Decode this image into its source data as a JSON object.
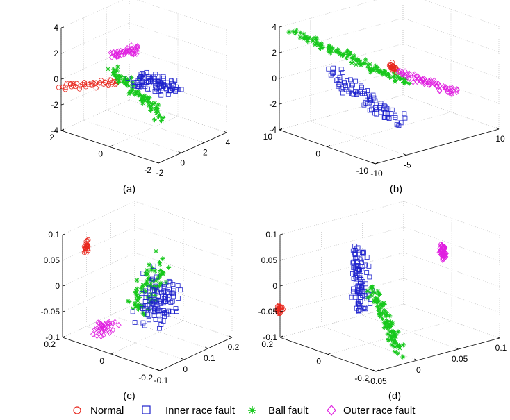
{
  "legend": [
    {
      "label": "Normal",
      "marker": "circle",
      "color": "#e8281e"
    },
    {
      "label": "Inner race fault",
      "marker": "square",
      "color": "#1e22cc"
    },
    {
      "label": "Ball fault",
      "marker": "star",
      "color": "#17c81c"
    },
    {
      "label": "Outer race fault",
      "marker": "diamond",
      "color": "#e020e0"
    }
  ],
  "chart_data": [
    {
      "type": "scatter3d",
      "label": "(a)",
      "xlim": [
        -2,
        4
      ],
      "ylim": [
        -2,
        2
      ],
      "zlim": [
        -4,
        4
      ],
      "x_ticks": [
        {
          "v": -2,
          "t": "-2"
        },
        {
          "v": 0,
          "t": "0"
        },
        {
          "v": 2,
          "t": "2"
        },
        {
          "v": 4,
          "t": "4"
        }
      ],
      "y_ticks": [
        {
          "v": -2,
          "t": "-2"
        },
        {
          "v": 0,
          "t": "0"
        },
        {
          "v": 2,
          "t": "2"
        }
      ],
      "z_ticks": [
        {
          "v": -4,
          "t": "-4"
        },
        {
          "v": -2,
          "t": "-2"
        },
        {
          "v": 0,
          "t": "0"
        },
        {
          "v": 2,
          "t": "2"
        },
        {
          "v": 4,
          "t": "4"
        }
      ],
      "series": [
        {
          "name": "Normal",
          "n": 45,
          "from": [
            -1.9,
            2.0,
            -0.6
          ],
          "to": [
            0.1,
            0.5,
            -0.1
          ],
          "spread": [
            0.1,
            0.08,
            0.12
          ]
        },
        {
          "name": "Outer race fault",
          "n": 50,
          "from": [
            -0.6,
            0.5,
            2.3
          ],
          "to": [
            1.0,
            0.2,
            2.3
          ],
          "spread": [
            0.1,
            0.06,
            0.16
          ]
        },
        {
          "name": "Ball fault",
          "n": 75,
          "from": [
            0.2,
            1.0,
            0.6
          ],
          "to": [
            0.4,
            -1.0,
            -1.9
          ],
          "spread": [
            0.15,
            0.08,
            0.28
          ]
        },
        {
          "name": "Inner race fault",
          "n": 90,
          "from": [
            1.3,
            0.4,
            -0.4
          ],
          "to": [
            2.9,
            -0.4,
            -1.0
          ],
          "spread": [
            0.3,
            0.2,
            0.35
          ]
        }
      ]
    },
    {
      "type": "scatter3d",
      "label": "(b)",
      "xlim": [
        -10,
        10
      ],
      "ylim": [
        -10,
        10
      ],
      "zlim": [
        -4,
        4
      ],
      "x_ticks": [
        {
          "v": -10,
          "t": "-10"
        },
        {
          "v": -5,
          "t": "-5"
        },
        {
          "v": 10,
          "t": "10"
        }
      ],
      "y_ticks": [
        {
          "v": -10,
          "t": "-10"
        },
        {
          "v": 0,
          "t": "0"
        },
        {
          "v": 10,
          "t": "10"
        }
      ],
      "z_ticks": [
        {
          "v": -4,
          "t": "-4"
        },
        {
          "v": -2,
          "t": "-2"
        },
        {
          "v": 0,
          "t": "0"
        },
        {
          "v": 2,
          "t": "2"
        },
        {
          "v": 4,
          "t": "4"
        }
      ],
      "series": [
        {
          "name": "Ball fault",
          "n": 110,
          "from": [
            -9.0,
            8.0,
            3.7
          ],
          "to": [
            2.0,
            -1.0,
            -0.5
          ],
          "spread": [
            0.3,
            0.3,
            0.14
          ]
        },
        {
          "name": "Inner race fault",
          "n": 90,
          "from": [
            -6.0,
            4.0,
            0.6
          ],
          "to": [
            -2.0,
            -4.5,
            -2.6
          ],
          "spread": [
            0.5,
            0.8,
            0.35
          ]
        },
        {
          "name": "Normal",
          "n": 25,
          "from": [
            0.8,
            0.6,
            0.8
          ],
          "to": [
            1.2,
            0.2,
            0.5
          ],
          "spread": [
            0.2,
            0.2,
            0.12
          ]
        },
        {
          "name": "Outer race fault",
          "n": 70,
          "from": [
            0.8,
            -1.0,
            0.5
          ],
          "to": [
            7.8,
            -4.2,
            -1.6
          ],
          "spread": [
            0.25,
            0.25,
            0.13
          ]
        }
      ]
    },
    {
      "type": "scatter3d",
      "label": "(c)",
      "xlim": [
        -0.1,
        0.2
      ],
      "ylim": [
        -0.2,
        0.2
      ],
      "zlim": [
        -0.1,
        0.1
      ],
      "x_ticks": [
        {
          "v": -0.1,
          "t": "-0.1"
        },
        {
          "v": 0,
          "t": "0"
        },
        {
          "v": 0.1,
          "t": "0.1"
        },
        {
          "v": 0.2,
          "t": "0.2"
        }
      ],
      "y_ticks": [
        {
          "v": -0.2,
          "t": "-0.2"
        },
        {
          "v": 0,
          "t": "0"
        },
        {
          "v": 0.2,
          "t": "0.2"
        }
      ],
      "z_ticks": [
        {
          "v": -0.1,
          "t": "-0.1"
        },
        {
          "v": -0.05,
          "t": "-0.05"
        },
        {
          "v": 0,
          "t": "0"
        },
        {
          "v": 0.05,
          "t": "0.05"
        },
        {
          "v": 0.1,
          "t": "0.1"
        }
      ],
      "series": [
        {
          "name": "Normal",
          "n": 25,
          "from": [
            0.0,
            0.2,
            0.06
          ],
          "to": [
            0.0,
            0.2,
            0.045
          ],
          "spread": [
            0.004,
            0.004,
            0.004
          ]
        },
        {
          "name": "Outer race fault",
          "n": 40,
          "from": [
            -0.09,
            0.07,
            -0.065
          ],
          "to": [
            -0.03,
            0.07,
            -0.07
          ],
          "spread": [
            0.008,
            0.008,
            0.006
          ]
        },
        {
          "name": "Ball fault",
          "n": 80,
          "from": [
            0.0,
            0.0,
            -0.03
          ],
          "to": [
            0.1,
            0.0,
            0.02
          ],
          "spread": [
            0.015,
            0.02,
            0.015
          ]
        },
        {
          "name": "Inner race fault",
          "n": 110,
          "from": [
            0.02,
            -0.04,
            -0.035
          ],
          "to": [
            0.1,
            -0.04,
            -0.015
          ],
          "spread": [
            0.02,
            0.025,
            0.02
          ]
        }
      ]
    },
    {
      "type": "scatter3d",
      "label": "(d)",
      "xlim": [
        -0.05,
        0.1
      ],
      "ylim": [
        -0.2,
        0.2
      ],
      "zlim": [
        -0.1,
        0.1
      ],
      "x_ticks": [
        {
          "v": -0.05,
          "t": "-0.05"
        },
        {
          "v": 0,
          "t": "0"
        },
        {
          "v": 0.05,
          "t": "0.05"
        },
        {
          "v": 0.1,
          "t": "0.1"
        }
      ],
      "y_ticks": [
        {
          "v": -0.2,
          "t": "-0.2"
        },
        {
          "v": 0,
          "t": "0"
        },
        {
          "v": 0.2,
          "t": "0.2"
        }
      ],
      "z_ticks": [
        {
          "v": -0.1,
          "t": "-0.1"
        },
        {
          "v": -0.05,
          "t": "-0.05"
        },
        {
          "v": 0,
          "t": "0"
        },
        {
          "v": 0.05,
          "t": "0.05"
        },
        {
          "v": 0.1,
          "t": "0.1"
        }
      ],
      "series": [
        {
          "name": "Normal",
          "n": 25,
          "from": [
            -0.05,
            0.2,
            -0.04
          ],
          "to": [
            -0.05,
            0.2,
            -0.05
          ],
          "spread": [
            0.002,
            0.004,
            0.003
          ]
        },
        {
          "name": "Inner race fault",
          "n": 100,
          "from": [
            -0.008,
            0.02,
            0.085
          ],
          "to": [
            -0.003,
            0.02,
            -0.035
          ],
          "spread": [
            0.004,
            0.01,
            0.01
          ]
        },
        {
          "name": "Ball fault",
          "n": 90,
          "from": [
            0.004,
            0.0,
            0.005
          ],
          "to": [
            0.025,
            -0.04,
            -0.12
          ],
          "spread": [
            0.003,
            0.005,
            0.008
          ]
        },
        {
          "name": "Outer race fault",
          "n": 60,
          "from": [
            0.088,
            0.0,
            0.052
          ],
          "to": [
            0.092,
            0.0,
            0.025
          ],
          "spread": [
            0.002,
            0.004,
            0.005
          ]
        }
      ]
    }
  ]
}
